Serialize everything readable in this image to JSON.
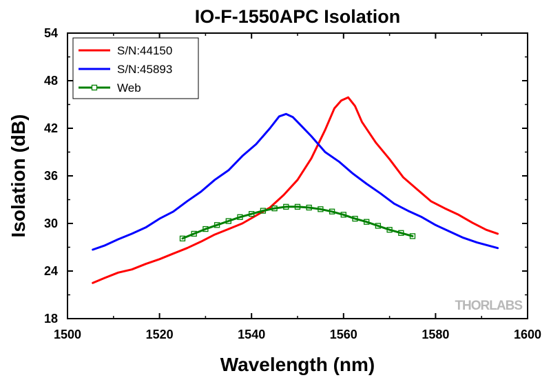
{
  "chart_data": {
    "type": "line",
    "title": "IO-F-1550APC Isolation",
    "xlabel": "Wavelength (nm)",
    "ylabel": "Isolation (dB)",
    "xlim": [
      1500,
      1600
    ],
    "ylim": [
      18,
      54
    ],
    "xticks": [
      1500,
      1520,
      1540,
      1560,
      1580,
      1600
    ],
    "yticks": [
      18,
      24,
      30,
      36,
      42,
      48,
      54
    ],
    "grid": false,
    "legend_position": "top-left",
    "watermark": "THORLABS",
    "series": [
      {
        "name": "S/N:44150",
        "color": "#ff0000",
        "marker": "none",
        "x": [
          1505.5,
          1508,
          1511,
          1514,
          1517,
          1520,
          1523,
          1526,
          1529,
          1532,
          1535,
          1538,
          1541,
          1544,
          1547,
          1550,
          1553,
          1556,
          1558,
          1559.5,
          1561,
          1562.5,
          1564,
          1567,
          1570,
          1573,
          1576,
          1579,
          1582,
          1585,
          1588,
          1591,
          1593.5
        ],
        "y": [
          22.5,
          23.1,
          23.8,
          24.2,
          24.9,
          25.5,
          26.2,
          26.9,
          27.7,
          28.6,
          29.3,
          30.0,
          31.0,
          32.0,
          33.6,
          35.5,
          38.2,
          41.8,
          44.5,
          45.5,
          45.9,
          44.8,
          42.8,
          40.2,
          38.1,
          35.8,
          34.3,
          32.8,
          31.9,
          31.1,
          30.1,
          29.2,
          28.7
        ]
      },
      {
        "name": "S/N:45893",
        "color": "#0000ff",
        "marker": "none",
        "x": [
          1505.5,
          1508,
          1511,
          1514,
          1517,
          1520,
          1523,
          1526,
          1529,
          1532,
          1535,
          1538,
          1541,
          1544,
          1546,
          1547.5,
          1549,
          1551,
          1553,
          1556,
          1559,
          1562,
          1565,
          1568,
          1571,
          1574,
          1577,
          1580,
          1583,
          1586,
          1589,
          1593.5
        ],
        "y": [
          26.7,
          27.2,
          28.0,
          28.7,
          29.5,
          30.6,
          31.5,
          32.8,
          34.0,
          35.5,
          36.7,
          38.5,
          40.0,
          42.0,
          43.5,
          43.8,
          43.4,
          42.2,
          41.0,
          39.0,
          37.8,
          36.3,
          35.0,
          33.8,
          32.5,
          31.6,
          30.8,
          29.8,
          29.0,
          28.2,
          27.6,
          26.9
        ]
      },
      {
        "name": "Web",
        "color": "#008000",
        "marker": "square-open",
        "x": [
          1525,
          1527.5,
          1530,
          1532.5,
          1535,
          1537.5,
          1540,
          1542.5,
          1545,
          1547.5,
          1550,
          1552.5,
          1555,
          1557.5,
          1560,
          1562.5,
          1565,
          1567.5,
          1570,
          1572.5,
          1575
        ],
        "y": [
          28.1,
          28.7,
          29.3,
          29.8,
          30.3,
          30.8,
          31.2,
          31.6,
          31.9,
          32.1,
          32.1,
          32.0,
          31.8,
          31.5,
          31.1,
          30.6,
          30.2,
          29.7,
          29.2,
          28.8,
          28.4
        ]
      }
    ]
  }
}
